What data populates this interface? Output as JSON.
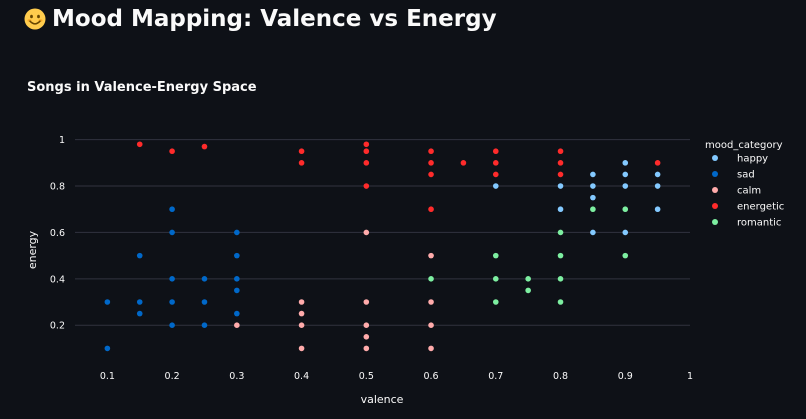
{
  "page": {
    "emoji_icon": "smiling-face-emoji",
    "title": "Mood Mapping: Valence vs Energy"
  },
  "chart_data": {
    "type": "scatter",
    "title": "Songs in Valence-Energy Space",
    "xlabel": "valence",
    "ylabel": "energy",
    "xlim": [
      0.05,
      1.0
    ],
    "ylim": [
      0.05,
      1.02
    ],
    "x_ticks": [
      "0.1",
      "0.2",
      "0.3",
      "0.4",
      "0.5",
      "0.6",
      "0.7",
      "0.8",
      "0.9",
      "1"
    ],
    "y_ticks": [
      "0.2",
      "0.4",
      "0.6",
      "0.8",
      "1"
    ],
    "grid": "horizontal",
    "legend": {
      "title": "mood_category",
      "placement": "right"
    },
    "series": [
      {
        "name": "happy",
        "color": "#83c9ff",
        "points": [
          [
            0.7,
            0.8
          ],
          [
            0.8,
            0.8
          ],
          [
            0.8,
            0.7
          ],
          [
            0.85,
            0.85
          ],
          [
            0.85,
            0.8
          ],
          [
            0.85,
            0.75
          ],
          [
            0.85,
            0.6
          ],
          [
            0.9,
            0.9
          ],
          [
            0.9,
            0.85
          ],
          [
            0.9,
            0.8
          ],
          [
            0.9,
            0.6
          ],
          [
            0.95,
            0.85
          ],
          [
            0.95,
            0.8
          ],
          [
            0.95,
            0.7
          ]
        ]
      },
      {
        "name": "sad",
        "color": "#0068c9",
        "points": [
          [
            0.1,
            0.3
          ],
          [
            0.1,
            0.1
          ],
          [
            0.15,
            0.5
          ],
          [
            0.15,
            0.3
          ],
          [
            0.15,
            0.25
          ],
          [
            0.2,
            0.7
          ],
          [
            0.2,
            0.6
          ],
          [
            0.2,
            0.4
          ],
          [
            0.2,
            0.3
          ],
          [
            0.2,
            0.2
          ],
          [
            0.25,
            0.4
          ],
          [
            0.25,
            0.3
          ],
          [
            0.25,
            0.2
          ],
          [
            0.3,
            0.6
          ],
          [
            0.3,
            0.5
          ],
          [
            0.3,
            0.4
          ],
          [
            0.3,
            0.35
          ],
          [
            0.3,
            0.25
          ]
        ]
      },
      {
        "name": "calm",
        "color": "#ffabab",
        "points": [
          [
            0.3,
            0.2
          ],
          [
            0.4,
            0.3
          ],
          [
            0.4,
            0.25
          ],
          [
            0.4,
            0.2
          ],
          [
            0.4,
            0.1
          ],
          [
            0.5,
            0.6
          ],
          [
            0.5,
            0.3
          ],
          [
            0.5,
            0.2
          ],
          [
            0.5,
            0.15
          ],
          [
            0.5,
            0.1
          ],
          [
            0.6,
            0.5
          ],
          [
            0.6,
            0.3
          ],
          [
            0.6,
            0.2
          ],
          [
            0.6,
            0.1
          ]
        ]
      },
      {
        "name": "energetic",
        "color": "#ff2b2b",
        "points": [
          [
            0.15,
            0.98
          ],
          [
            0.2,
            0.95
          ],
          [
            0.25,
            0.97
          ],
          [
            0.4,
            0.95
          ],
          [
            0.4,
            0.9
          ],
          [
            0.5,
            0.98
          ],
          [
            0.5,
            0.95
          ],
          [
            0.5,
            0.9
          ],
          [
            0.5,
            0.8
          ],
          [
            0.6,
            0.95
          ],
          [
            0.6,
            0.9
          ],
          [
            0.6,
            0.85
          ],
          [
            0.6,
            0.7
          ],
          [
            0.65,
            0.9
          ],
          [
            0.7,
            0.95
          ],
          [
            0.7,
            0.9
          ],
          [
            0.7,
            0.85
          ],
          [
            0.8,
            0.95
          ],
          [
            0.8,
            0.9
          ],
          [
            0.8,
            0.85
          ],
          [
            0.95,
            0.9
          ]
        ]
      },
      {
        "name": "romantic",
        "color": "#7defa1",
        "points": [
          [
            0.6,
            0.4
          ],
          [
            0.7,
            0.5
          ],
          [
            0.7,
            0.4
          ],
          [
            0.7,
            0.3
          ],
          [
            0.75,
            0.4
          ],
          [
            0.75,
            0.35
          ],
          [
            0.8,
            0.6
          ],
          [
            0.8,
            0.5
          ],
          [
            0.8,
            0.4
          ],
          [
            0.8,
            0.3
          ],
          [
            0.85,
            0.7
          ],
          [
            0.9,
            0.7
          ],
          [
            0.9,
            0.5
          ]
        ]
      }
    ]
  }
}
